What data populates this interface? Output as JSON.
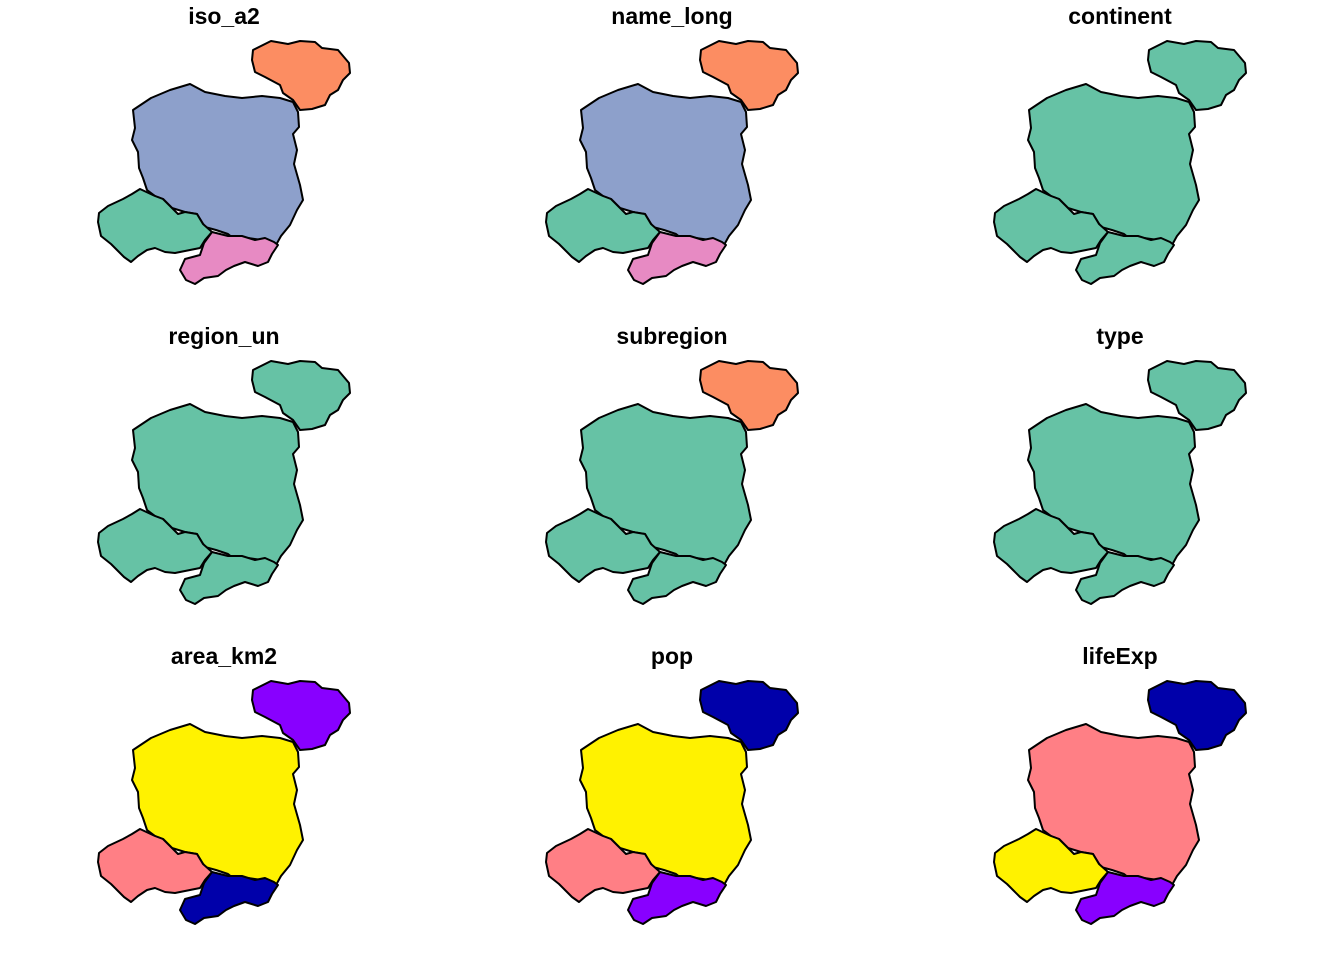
{
  "figure": {
    "panels": [
      {
        "title": "iso_a2",
        "fills": {
          "poland": "#8DA0CB",
          "lithuania": "#FC8D62",
          "czechia": "#66C2A5",
          "slovakia": "#E78AC3"
        }
      },
      {
        "title": "name_long",
        "fills": {
          "poland": "#8DA0CB",
          "lithuania": "#FC8D62",
          "czechia": "#66C2A5",
          "slovakia": "#E78AC3"
        }
      },
      {
        "title": "continent",
        "fills": {
          "poland": "#66C2A5",
          "lithuania": "#66C2A5",
          "czechia": "#66C2A5",
          "slovakia": "#66C2A5"
        }
      },
      {
        "title": "region_un",
        "fills": {
          "poland": "#66C2A5",
          "lithuania": "#66C2A5",
          "czechia": "#66C2A5",
          "slovakia": "#66C2A5"
        }
      },
      {
        "title": "subregion",
        "fills": {
          "poland": "#66C2A5",
          "lithuania": "#FC8D62",
          "czechia": "#66C2A5",
          "slovakia": "#66C2A5"
        }
      },
      {
        "title": "type",
        "fills": {
          "poland": "#66C2A5",
          "lithuania": "#66C2A5",
          "czechia": "#66C2A5",
          "slovakia": "#66C2A5"
        }
      },
      {
        "title": "area_km2",
        "fills": {
          "poland": "#FFF200",
          "lithuania": "#8800FF",
          "czechia": "#FF7F85",
          "slovakia": "#0000AA"
        }
      },
      {
        "title": "pop",
        "fills": {
          "poland": "#FFF200",
          "lithuania": "#0000AA",
          "czechia": "#FF7F85",
          "slovakia": "#8800FF"
        }
      },
      {
        "title": "lifeExp",
        "fills": {
          "poland": "#FF7F85",
          "lithuania": "#0000AA",
          "czechia": "#FFF200",
          "slovakia": "#8800FF"
        }
      }
    ]
  }
}
